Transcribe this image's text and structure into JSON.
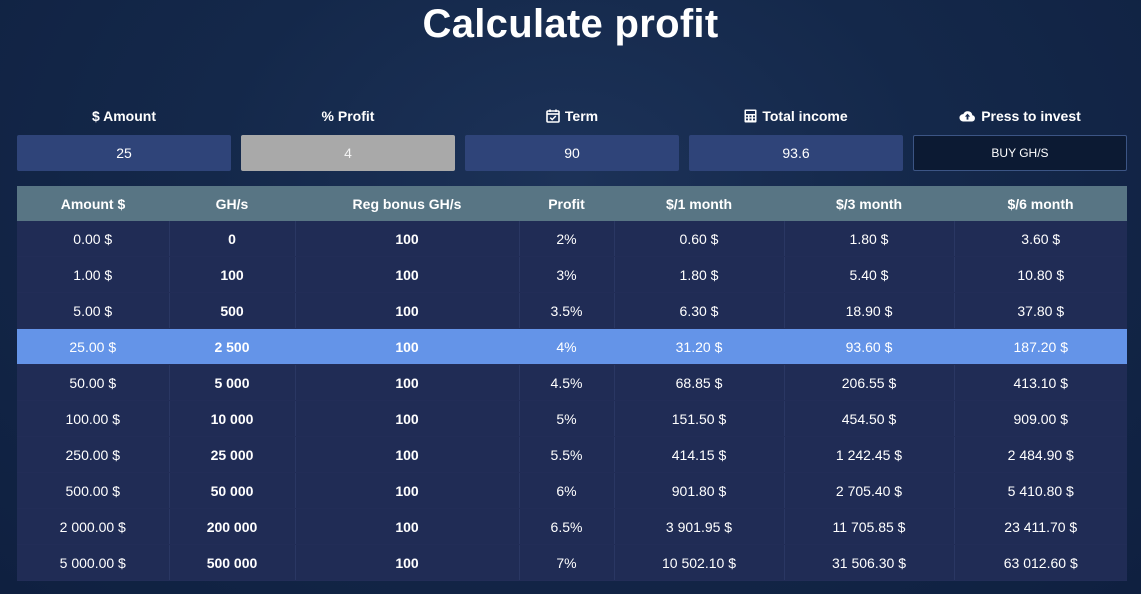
{
  "page": {
    "title": "Calculate profit"
  },
  "calculator": {
    "amount": {
      "label": "$ Amount",
      "icon": "dollar-icon",
      "value": "25"
    },
    "profit": {
      "label": "% Profit",
      "icon": "percent-icon",
      "value": "4"
    },
    "term": {
      "label": "Term",
      "icon": "calendar-check-icon",
      "value": "90"
    },
    "income": {
      "label": "Total income",
      "icon": "calculator-icon",
      "value": "93.6"
    },
    "invest": {
      "label": "Press to invest",
      "icon": "cloud-upload-icon",
      "button_label": "BUY GH/S"
    }
  },
  "table": {
    "headers": [
      "Amount $",
      "GH/s",
      "Reg bonus GH/s",
      "Profit",
      "$/1 month",
      "$/3 month",
      "$/6 month"
    ],
    "selected_row": 3,
    "rows": [
      [
        "0.00 $",
        "0",
        "100",
        "2%",
        "0.60 $",
        "1.80 $",
        "3.60 $"
      ],
      [
        "1.00 $",
        "100",
        "100",
        "3%",
        "1.80 $",
        "5.40 $",
        "10.80 $"
      ],
      [
        "5.00 $",
        "500",
        "100",
        "3.5%",
        "6.30 $",
        "18.90 $",
        "37.80 $"
      ],
      [
        "25.00 $",
        "2 500",
        "100",
        "4%",
        "31.20 $",
        "93.60 $",
        "187.20 $"
      ],
      [
        "50.00 $",
        "5 000",
        "100",
        "4.5%",
        "68.85 $",
        "206.55 $",
        "413.10 $"
      ],
      [
        "100.00 $",
        "10 000",
        "100",
        "5%",
        "151.50 $",
        "454.50 $",
        "909.00 $"
      ],
      [
        "250.00 $",
        "25 000",
        "100",
        "5.5%",
        "414.15 $",
        "1 242.45 $",
        "2 484.90 $"
      ],
      [
        "500.00 $",
        "50 000",
        "100",
        "6%",
        "901.80 $",
        "2 705.40 $",
        "5 410.80 $"
      ],
      [
        "2 000.00 $",
        "200 000",
        "100",
        "6.5%",
        "3 901.95 $",
        "11 705.85 $",
        "23 411.70 $"
      ],
      [
        "5 000.00 $",
        "500 000",
        "100",
        "7%",
        "10 502.10 $",
        "31 506.30 $",
        "63 012.60 $"
      ]
    ]
  },
  "colors": {
    "background": "#14284a",
    "field": "#2f4479",
    "field_disabled": "#a9a9a9",
    "header": "#587584",
    "row": "#202c55",
    "selected_row": "#6494e8",
    "button": "#0c1a33"
  }
}
